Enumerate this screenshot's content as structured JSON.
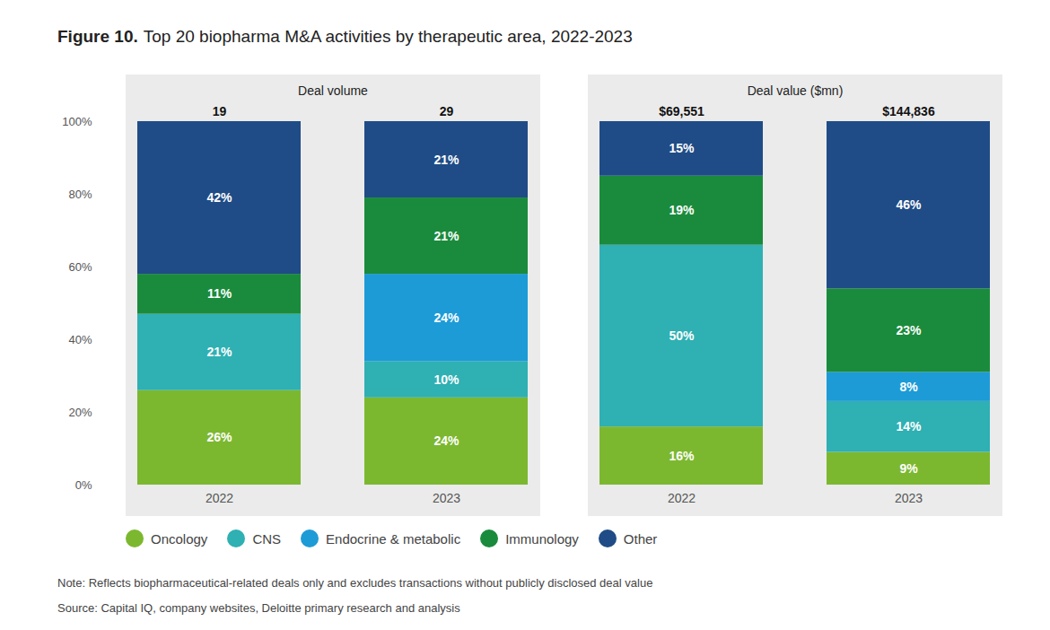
{
  "figure_label": "Figure 10.",
  "title": "Top 20 biopharma M&A activities by therapeutic area, 2022-2023",
  "notes": [
    "Note: Reflects biopharmaceutical-related deals only and excludes transactions without publicly disclosed deal value",
    "Source: Capital IQ, company websites, Deloitte primary research and analysis"
  ],
  "chart_data": [
    {
      "type": "bar",
      "title": "Deal volume",
      "stacked": true,
      "data_labels": true,
      "legend": "bottom",
      "categories": [
        "2022",
        "2023"
      ],
      "totals": [
        19,
        29
      ],
      "ylim": [
        0,
        100
      ],
      "yticks": [
        {
          "value": 0,
          "label": "0%"
        },
        {
          "value": 20,
          "label": "20%"
        },
        {
          "value": 40,
          "label": "40%"
        },
        {
          "value": 60,
          "label": "60%"
        },
        {
          "value": 80,
          "label": "80%"
        },
        {
          "value": 100,
          "label": "100%"
        }
      ],
      "series": [
        {
          "name": "Oncology",
          "color": "#7cb82f",
          "values": [
            26,
            24
          ],
          "value_labels": [
            "26%",
            "24%"
          ]
        },
        {
          "name": "CNS",
          "color": "#2fb0b3",
          "values": [
            21,
            10
          ],
          "value_labels": [
            "21%",
            "10%"
          ]
        },
        {
          "name": "Endocrine & metabolic",
          "color": "#1d9bd7",
          "values": [
            null,
            24
          ],
          "value_labels": [
            null,
            "24%"
          ]
        },
        {
          "name": "Immunology",
          "color": "#1a8b3c",
          "values": [
            11,
            21
          ],
          "value_labels": [
            "11%",
            "21%"
          ]
        },
        {
          "name": "Other",
          "color": "#1f4c86",
          "values": [
            42,
            21
          ],
          "value_labels": [
            "42%",
            "21%"
          ]
        }
      ]
    },
    {
      "type": "bar",
      "title": "Deal value ($mn)",
      "stacked": true,
      "data_labels": true,
      "tick_labels": "x",
      "categories": [
        "2022",
        "2023"
      ],
      "totals": [
        69551,
        144836
      ],
      "total_labels": [
        "$69,551",
        "$144,836"
      ],
      "ylim": [
        0,
        100
      ],
      "series": [
        {
          "name": "Oncology",
          "color": "#7cb82f",
          "values": [
            16,
            9
          ],
          "value_labels": [
            "16%",
            "9%"
          ]
        },
        {
          "name": "CNS",
          "color": "#2fb0b3",
          "values": [
            50,
            14
          ],
          "value_labels": [
            "50%",
            "14%"
          ]
        },
        {
          "name": "Endocrine & metabolic",
          "color": "#1d9bd7",
          "values": [
            null,
            8
          ],
          "value_labels": [
            null,
            "8%"
          ]
        },
        {
          "name": "Immunology",
          "color": "#1a8b3c",
          "values": [
            19,
            23
          ],
          "value_labels": [
            "19%",
            "23%"
          ]
        },
        {
          "name": "Other",
          "color": "#1f4c86",
          "values": [
            15,
            46
          ],
          "value_labels": [
            "15%",
            "46%"
          ]
        }
      ]
    }
  ]
}
